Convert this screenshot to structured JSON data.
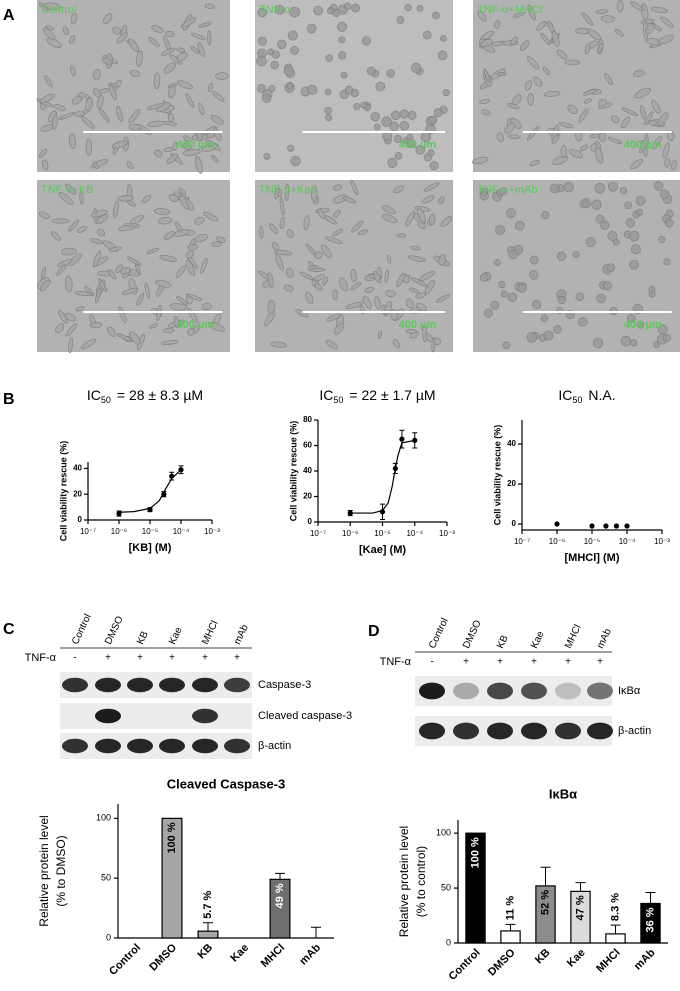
{
  "panel_labels": {
    "a": "A",
    "b": "B",
    "c": "C",
    "d": "D"
  },
  "micrographs": {
    "scale_label": "400 µm",
    "images": [
      {
        "label": "Control"
      },
      {
        "label": "TNF-α"
      },
      {
        "label": "TNF-α+MHCl"
      },
      {
        "label": "TNF-α+KB"
      },
      {
        "label": "TNF-α+Kae"
      },
      {
        "label": "TNF-α+mAb"
      }
    ]
  },
  "chart_data": [
    {
      "type": "dose_response",
      "title_parts": [
        "IC",
        "50",
        "= 28 ± 8.3 µM"
      ],
      "xlabel": "[KB]  (M)",
      "ylabel": "Cell viability rescue (%)",
      "xscale": "log",
      "xlim": [
        1e-07,
        0.001
      ],
      "xticks": [
        {
          "value": 1e-07,
          "label": "10⁻⁷"
        },
        {
          "value": 1e-06,
          "label": "10⁻⁶"
        },
        {
          "value": 1e-05,
          "label": "10⁻⁵"
        },
        {
          "value": 0.0001,
          "label": "10⁻⁴"
        },
        {
          "value": 0.001,
          "label": "10⁻³"
        }
      ],
      "ylim": [
        0,
        45
      ],
      "yticks": [
        0,
        20,
        40
      ],
      "color": "#000000",
      "x": [
        1e-06,
        1e-05,
        2.8e-05,
        5e-05,
        0.0001
      ],
      "values": [
        5,
        8,
        20,
        34,
        39
      ],
      "errors": [
        2,
        1.5,
        2,
        3,
        3
      ],
      "fit": {
        "x": [
          1e-06,
          3e-06,
          1e-05,
          2e-05,
          3e-05,
          5e-05,
          0.0001
        ],
        "values": [
          6,
          6.5,
          9,
          15,
          23,
          32,
          39
        ]
      }
    },
    {
      "type": "dose_response",
      "title_parts": [
        "IC",
        "50",
        "= 22 ± 1.7 µM"
      ],
      "xlabel": "[Kae]  (M)",
      "ylabel": "Cell viability rescue (%)",
      "xscale": "log",
      "xlim": [
        1e-07,
        0.001
      ],
      "xticks": [
        {
          "value": 1e-07,
          "label": "10⁻⁷"
        },
        {
          "value": 1e-06,
          "label": "10⁻⁶"
        },
        {
          "value": 1e-05,
          "label": "10⁻⁵"
        },
        {
          "value": 0.0001,
          "label": "10⁻⁴"
        },
        {
          "value": 0.001,
          "label": "10⁻³"
        }
      ],
      "ylim": [
        0,
        80
      ],
      "yticks": [
        0,
        20,
        40,
        60,
        80
      ],
      "color": "#000000",
      "x": [
        1e-06,
        1e-05,
        2.5e-05,
        4e-05,
        0.0001
      ],
      "values": [
        7,
        8,
        42,
        65,
        64
      ],
      "errors": [
        2,
        6,
        4,
        7,
        6
      ],
      "fit": {
        "x": [
          1e-06,
          5e-06,
          1e-05,
          1.5e-05,
          2e-05,
          2.5e-05,
          3e-05,
          4e-05,
          0.0001
        ],
        "values": [
          7,
          7,
          9,
          15,
          28,
          42,
          52,
          62,
          64
        ]
      }
    },
    {
      "type": "dose_response",
      "title_parts": [
        "IC",
        "50",
        "N.A."
      ],
      "xlabel": "[MHCl]  (M)",
      "ylabel": "Cell viability rescue (%)",
      "xscale": "log",
      "xlim": [
        1e-07,
        0.001
      ],
      "xticks": [
        {
          "value": 1e-07,
          "label": "10⁻⁷"
        },
        {
          "value": 1e-06,
          "label": "10⁻⁶"
        },
        {
          "value": 1e-05,
          "label": "10⁻⁵"
        },
        {
          "value": 0.0001,
          "label": "10⁻⁴"
        },
        {
          "value": 0.001,
          "label": "10⁻³"
        }
      ],
      "ylim": [
        -3,
        52
      ],
      "yticks": [
        0,
        20,
        40
      ],
      "color": "#000000",
      "x": [
        1e-06,
        1e-05,
        2.5e-05,
        5e-05,
        0.0001
      ],
      "values": [
        0,
        -1,
        -1,
        -1,
        -1
      ]
    },
    {
      "type": "bar",
      "title": "Cleaved Caspase-3",
      "ylabel_lines": [
        "Relative protein level",
        "(% to DMSO)"
      ],
      "categories": [
        "Control",
        "DMSO",
        "KB",
        "Kae",
        "MHCl",
        "mAb"
      ],
      "values": [
        0,
        100,
        5.7,
        0,
        49,
        0
      ],
      "value_labels": [
        null,
        "100 %",
        "5.7 %",
        null,
        "49 %",
        null
      ],
      "errors": [
        null,
        null,
        7,
        null,
        5,
        9
      ],
      "colors": [
        "#ffffff",
        "#a6a6a6",
        "#a6a6a6",
        "#ffffff",
        "#6e6e6e",
        "#ffffff"
      ],
      "ylim": [
        0,
        112
      ],
      "yticks": [
        0,
        50,
        100
      ]
    },
    {
      "type": "bar",
      "title": "IκBα",
      "ylabel_lines": [
        "Relative protein level",
        "(% to control)"
      ],
      "categories": [
        "Control",
        "DMSO",
        "KB",
        "Kae",
        "MHCl",
        "mAb"
      ],
      "values": [
        100,
        11,
        52,
        47,
        8.3,
        36
      ],
      "value_labels": [
        "100 %",
        "11 %",
        "52 %",
        "47 %",
        "8.3 %",
        "36 %"
      ],
      "errors": [
        null,
        6,
        17,
        8,
        8,
        10
      ],
      "colors": [
        "#000000",
        "#ffffff",
        "#8c8c8c",
        "#dcdcdc",
        "#ffffff",
        "#000000"
      ],
      "ylim": [
        0,
        112
      ],
      "yticks": [
        0,
        50,
        100
      ]
    }
  ],
  "blot_c": {
    "lanes": [
      "Control",
      "DMSO",
      "KB",
      "Kae",
      "MHCl",
      "mAb"
    ],
    "treatment_label": "TNF-α",
    "treatment": [
      "-",
      "+",
      "+",
      "+",
      "+",
      "+"
    ],
    "bands": [
      "Caspase-3",
      "Cleaved caspase-3",
      "β-actin"
    ]
  },
  "blot_d": {
    "lanes": [
      "Control",
      "DMSO",
      "KB",
      "Kae",
      "MHCl",
      "mAb"
    ],
    "treatment_label": "TNF-α",
    "treatment": [
      "-",
      "+",
      "+",
      "+",
      "+",
      "+"
    ],
    "bands": [
      "IκBα",
      "β-actin"
    ]
  }
}
